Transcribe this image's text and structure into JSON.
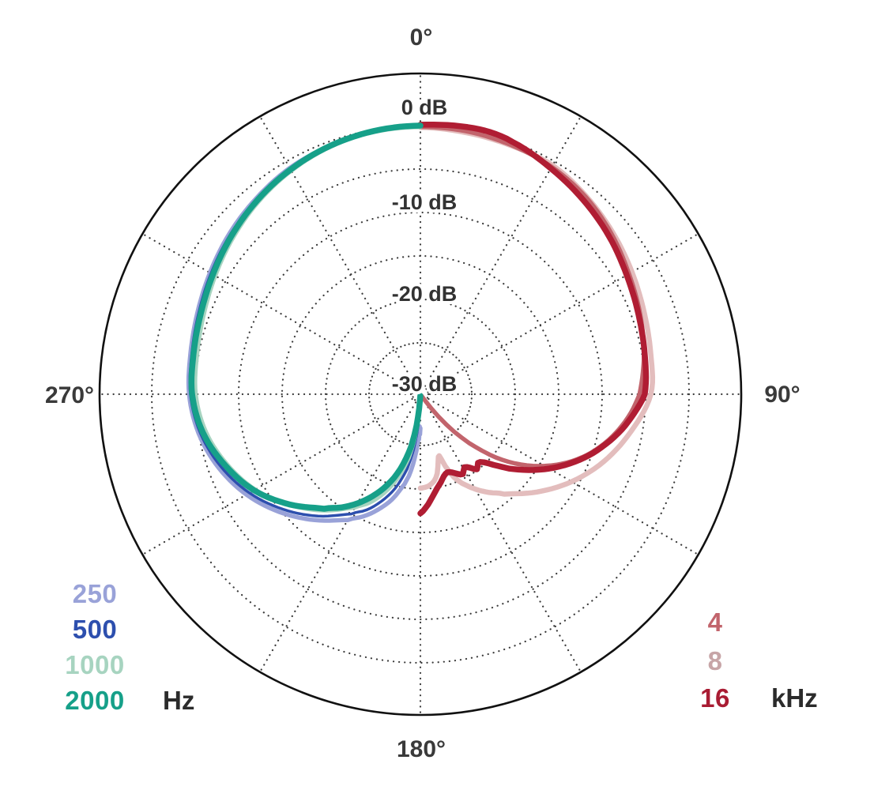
{
  "figure": {
    "description": "Polar frequency response pattern (cardioid-style directivity plot)",
    "background": "#ffffff",
    "grid_color": "#3b3b3b",
    "outer_circle_color": "#111111",
    "angle_tick_labels": [
      {
        "angle": 0,
        "label": "0°"
      },
      {
        "angle": 90,
        "label": "90°"
      },
      {
        "angle": 180,
        "label": "180°"
      },
      {
        "angle": 270,
        "label": "270°"
      }
    ],
    "radial_tick_labels": [
      {
        "db": 0,
        "label": "0 dB"
      },
      {
        "db": -10,
        "label": "-10 dB"
      },
      {
        "db": -20,
        "label": "-20 dB"
      },
      {
        "db": -30,
        "label": "-30 dB"
      }
    ]
  },
  "legend": {
    "left": {
      "unit": "Hz",
      "items": [
        "250",
        "500",
        "1000",
        "2000"
      ]
    },
    "right": {
      "unit": "kHz",
      "items": [
        "4",
        "8",
        "16"
      ]
    }
  },
  "chart_data": {
    "type": "line",
    "polar": true,
    "radial_axis": {
      "unit": "dB",
      "ring_step_db": 5,
      "min_db": -30,
      "max_db": 0,
      "labeled_rings": [
        0,
        -10,
        -20,
        -30
      ]
    },
    "angle_axis": {
      "spoke_step_deg": 30,
      "zero_at_top": true
    },
    "series": [
      {
        "label": "8",
        "name": "8 kHz",
        "group": "kHz",
        "side": "right",
        "color": "#e3bdbd",
        "legend_color": "#c7a5a7",
        "stroke_width": 6.5,
        "points_deg_db": [
          [
            0,
            -0.2
          ],
          [
            10,
            -0.35
          ],
          [
            20,
            -0.45
          ],
          [
            30,
            -0.5
          ],
          [
            40,
            -1.2
          ],
          [
            50,
            -2.0
          ],
          [
            60,
            -2.8
          ],
          [
            70,
            -3.5
          ],
          [
            80,
            -4.0
          ],
          [
            90,
            -4.4
          ],
          [
            100,
            -6.3
          ],
          [
            110,
            -8.4
          ],
          [
            120,
            -10.8
          ],
          [
            130,
            -13.4
          ],
          [
            140,
            -15.9
          ],
          [
            145,
            -17.1
          ],
          [
            150,
            -18.3
          ],
          [
            155,
            -19.6
          ],
          [
            158,
            -20.6
          ],
          [
            161,
            -22.2
          ],
          [
            163,
            -23.5
          ],
          [
            165,
            -23.0
          ],
          [
            168,
            -21.6
          ],
          [
            171,
            -20.8
          ],
          [
            175,
            -20.3
          ],
          [
            180,
            -20.1
          ]
        ]
      },
      {
        "label": "4",
        "name": "4 kHz",
        "group": "kHz",
        "side": "right",
        "color": "#c2646c",
        "legend_color": "#c2646c",
        "stroke_width": 5.5,
        "points_deg_db": [
          [
            0,
            -0.15
          ],
          [
            10,
            -0.2
          ],
          [
            20,
            -0.4
          ],
          [
            30,
            -0.7
          ],
          [
            40,
            -1.3
          ],
          [
            50,
            -2.2
          ],
          [
            60,
            -3.2
          ],
          [
            70,
            -4.0
          ],
          [
            80,
            -4.8
          ],
          [
            90,
            -5.7
          ],
          [
            95,
            -6.6
          ],
          [
            100,
            -7.7
          ],
          [
            105,
            -9.0
          ],
          [
            110,
            -10.5
          ],
          [
            115,
            -12.3
          ],
          [
            120,
            -14.4
          ],
          [
            125,
            -16.8
          ],
          [
            130,
            -19.6
          ],
          [
            135,
            -22.9
          ],
          [
            138,
            -25.1
          ],
          [
            141,
            -27.6
          ],
          [
            144,
            -30.2
          ],
          [
            147,
            -33.5
          ],
          [
            160,
            -40.0
          ],
          [
            180,
            -40.0
          ]
        ]
      },
      {
        "label": "16",
        "name": "16 kHz",
        "group": "kHz",
        "side": "right",
        "color": "#b01d33",
        "legend_color": "#a91c33",
        "stroke_width": 7.5,
        "points_deg_db": [
          [
            0,
            0.1
          ],
          [
            10,
            0.3
          ],
          [
            15,
            0.3
          ],
          [
            20,
            0.0
          ],
          [
            30,
            -0.9
          ],
          [
            40,
            -1.75
          ],
          [
            50,
            -2.6
          ],
          [
            60,
            -3.5
          ],
          [
            70,
            -4.2
          ],
          [
            80,
            -4.7
          ],
          [
            90,
            -5.1
          ],
          [
            95,
            -6.2
          ],
          [
            100,
            -7.4
          ],
          [
            105,
            -8.8
          ],
          [
            110,
            -10.3
          ],
          [
            115,
            -12.0
          ],
          [
            120,
            -13.8
          ],
          [
            125,
            -15.7
          ],
          [
            130,
            -17.6
          ],
          [
            134,
            -19.2
          ],
          [
            137,
            -20.2
          ],
          [
            140,
            -20.6
          ],
          [
            143,
            -20.1
          ],
          [
            146,
            -20.7
          ],
          [
            149,
            -21.1
          ],
          [
            152,
            -20.5
          ],
          [
            155,
            -20.8
          ],
          [
            158,
            -21.2
          ],
          [
            161,
            -21.4
          ],
          [
            164,
            -21.1
          ],
          [
            167,
            -20.5
          ],
          [
            170,
            -19.9
          ],
          [
            173,
            -19.1
          ],
          [
            176,
            -18.2
          ],
          [
            180,
            -17.2
          ]
        ]
      },
      {
        "label": "250",
        "name": "250 Hz",
        "group": "Hz",
        "side": "left",
        "color": "#99a2d8",
        "legend_color": "#99a2d8",
        "stroke_width": 5.5,
        "points_deg_db": [
          [
            0,
            -0.1
          ],
          [
            10,
            -0.2
          ],
          [
            20,
            -0.5
          ],
          [
            30,
            -0.85
          ],
          [
            40,
            -1.5
          ],
          [
            50,
            -2.2
          ],
          [
            60,
            -2.95
          ],
          [
            70,
            -3.6
          ],
          [
            80,
            -4.05
          ],
          [
            90,
            -4.3
          ],
          [
            100,
            -5.0
          ],
          [
            110,
            -6.2
          ],
          [
            120,
            -7.8
          ],
          [
            130,
            -9.8
          ],
          [
            140,
            -12.0
          ],
          [
            150,
            -14.2
          ],
          [
            155,
            -15.4
          ],
          [
            160,
            -16.8
          ],
          [
            165,
            -18.4
          ],
          [
            170,
            -20.4
          ],
          [
            172,
            -21.4
          ],
          [
            174,
            -22.8
          ],
          [
            176,
            -24.4
          ],
          [
            177,
            -25.5
          ],
          [
            177.6,
            -26.5
          ],
          [
            178.2,
            -25.7
          ],
          [
            178.8,
            -27.2
          ],
          [
            179.4,
            -26.3
          ],
          [
            180,
            -27.0
          ]
        ]
      },
      {
        "label": "500",
        "name": "500 Hz",
        "group": "Hz",
        "side": "left",
        "color": "#2d4fae",
        "legend_color": "#2d4fae",
        "stroke_width": 3.5,
        "points_deg_db": [
          [
            0,
            -0.15
          ],
          [
            10,
            -0.25
          ],
          [
            20,
            -0.55
          ],
          [
            30,
            -0.95
          ],
          [
            40,
            -1.6
          ],
          [
            50,
            -2.35
          ],
          [
            60,
            -3.1
          ],
          [
            70,
            -3.75
          ],
          [
            80,
            -4.2
          ],
          [
            90,
            -4.45
          ],
          [
            100,
            -5.2
          ],
          [
            110,
            -6.5
          ],
          [
            120,
            -8.2
          ],
          [
            130,
            -10.3
          ],
          [
            140,
            -12.6
          ],
          [
            150,
            -15.0
          ],
          [
            155,
            -16.2
          ],
          [
            160,
            -17.8
          ],
          [
            165,
            -19.7
          ],
          [
            170,
            -22.2
          ],
          [
            173,
            -24.5
          ],
          [
            175,
            -26.4
          ],
          [
            177,
            -28.8
          ],
          [
            178.5,
            -31.5
          ]
        ]
      },
      {
        "label": "1000",
        "name": "1000 Hz",
        "group": "Hz",
        "side": "left",
        "color": "#a7d4c0",
        "legend_color": "#a7d4c0",
        "stroke_width": 4.5,
        "points_deg_db": [
          [
            0,
            -0.2
          ],
          [
            10,
            -0.3
          ],
          [
            20,
            -0.65
          ],
          [
            30,
            -1.25
          ],
          [
            40,
            -2.0
          ],
          [
            50,
            -2.85
          ],
          [
            60,
            -3.7
          ],
          [
            70,
            -4.4
          ],
          [
            80,
            -4.85
          ],
          [
            90,
            -5.1
          ],
          [
            100,
            -5.9
          ],
          [
            110,
            -7.3
          ],
          [
            120,
            -9.0
          ],
          [
            130,
            -11.1
          ],
          [
            140,
            -13.4
          ],
          [
            150,
            -15.8
          ],
          [
            155,
            -17.1
          ],
          [
            160,
            -18.8
          ],
          [
            165,
            -20.9
          ],
          [
            170,
            -23.5
          ],
          [
            173,
            -25.8
          ],
          [
            175,
            -27.7
          ],
          [
            177,
            -30.2
          ],
          [
            178,
            -32.8
          ]
        ]
      },
      {
        "label": "2000",
        "name": "2000 Hz",
        "group": "Hz",
        "side": "left",
        "color": "#16a089",
        "legend_color": "#16a089",
        "stroke_width": 7.5,
        "points_deg_db": [
          [
            0,
            0.0
          ],
          [
            10,
            -0.15
          ],
          [
            20,
            -0.5
          ],
          [
            30,
            -1.05
          ],
          [
            40,
            -1.75
          ],
          [
            50,
            -2.55
          ],
          [
            60,
            -3.35
          ],
          [
            70,
            -4.0
          ],
          [
            80,
            -4.4
          ],
          [
            90,
            -4.65
          ],
          [
            100,
            -5.5
          ],
          [
            110,
            -7.0
          ],
          [
            120,
            -8.8
          ],
          [
            130,
            -11.2
          ],
          [
            140,
            -13.7
          ],
          [
            145,
            -15.0
          ],
          [
            150,
            -16.4
          ],
          [
            155,
            -18.0
          ],
          [
            160,
            -19.8
          ],
          [
            165,
            -22.0
          ],
          [
            170,
            -24.8
          ],
          [
            173,
            -27.3
          ],
          [
            175,
            -29.3
          ],
          [
            177,
            -31.8
          ],
          [
            178,
            -34.0
          ]
        ]
      }
    ]
  }
}
